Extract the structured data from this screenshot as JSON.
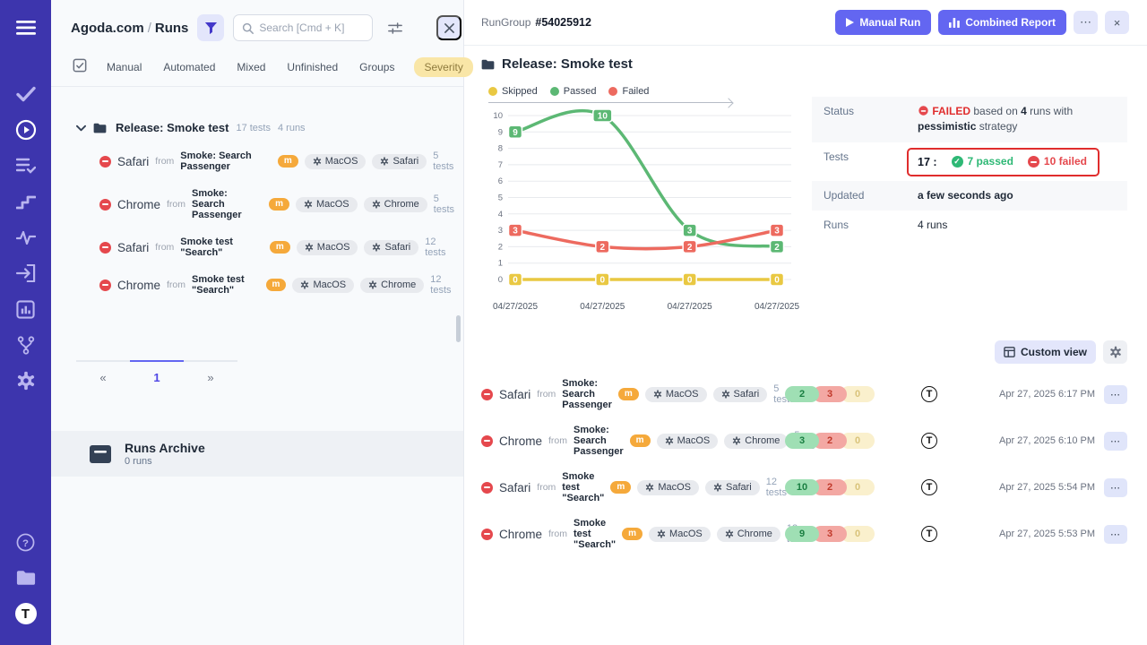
{
  "sidebar": {
    "icons": [
      "menu-icon",
      "check-icon",
      "play-circle-icon",
      "list-check-icon",
      "steps-icon",
      "pulse-icon",
      "import-icon",
      "chart-box-icon",
      "branch-icon",
      "gear-icon",
      "help-icon",
      "folder-icon",
      "logo"
    ],
    "logo_letter": "T"
  },
  "labels": {
    "from": "from"
  },
  "left_panel": {
    "breadcrumb": {
      "project": "Agoda.com",
      "separator": "/",
      "current": "Runs"
    },
    "search_placeholder": "Search [Cmd + K]",
    "tabs": [
      {
        "label": "Manual"
      },
      {
        "label": "Automated"
      },
      {
        "label": "Mixed"
      },
      {
        "label": "Unfinished"
      },
      {
        "label": "Groups"
      }
    ],
    "severity_tab": "Severity",
    "group_header": {
      "title": "Release: Smoke test",
      "tests_count": "17 tests",
      "runs_count": "4 runs"
    },
    "runs": [
      {
        "browser": "Safari",
        "suite": "Smoke: Search Passenger",
        "badge": "m",
        "os_chip": "MacOS",
        "browser_chip": "Safari",
        "tests": "5 tests"
      },
      {
        "browser": "Chrome",
        "suite": "Smoke: Search Passenger",
        "badge": "m",
        "os_chip": "MacOS",
        "browser_chip": "Chrome",
        "tests": "5 tests"
      },
      {
        "browser": "Safari",
        "suite": "Smoke test \"Search\"",
        "badge": "m",
        "os_chip": "MacOS",
        "browser_chip": "Safari",
        "tests": "12 tests"
      },
      {
        "browser": "Chrome",
        "suite": "Smoke test \"Search\"",
        "badge": "m",
        "os_chip": "MacOS",
        "browser_chip": "Chrome",
        "tests": "12 tests"
      }
    ],
    "pagination": {
      "prev": "«",
      "current": "1",
      "next": "»"
    },
    "archive": {
      "title": "Runs Archive",
      "count": "0 runs"
    }
  },
  "right_panel": {
    "header": {
      "group_label": "RunGroup",
      "group_id": "#54025912",
      "manual_run_label": "Manual Run",
      "combined_report_label": "Combined Report",
      "more_label": "⋯",
      "close_label": "×"
    },
    "title": "Release: Smoke test",
    "summary": {
      "status": {
        "label": "Status",
        "badge": "FAILED",
        "seg1": "based on",
        "runs_count": "4",
        "seg2": "runs with",
        "strategy": "pessimistic",
        "seg3": "strategy"
      },
      "tests": {
        "label": "Tests",
        "total": "17 :",
        "passed": "7 passed",
        "failed": "10 failed"
      },
      "updated": {
        "label": "Updated",
        "value": "a few seconds ago"
      },
      "runs": {
        "label": "Runs",
        "value": "4 runs"
      }
    },
    "custom_view_label": "Custom view",
    "runs": [
      {
        "browser": "Safari",
        "suite": "Smoke: Search Passenger",
        "badge": "m",
        "os_chip": "MacOS",
        "browser_chip": "Safari",
        "tests": "5 tests",
        "passed": "2",
        "failed": "3",
        "skipped": "0",
        "avatar": "T",
        "time": "Apr 27, 2025 6:17 PM",
        "more": "⋯"
      },
      {
        "browser": "Chrome",
        "suite": "Smoke: Search Passenger",
        "badge": "m",
        "os_chip": "MacOS",
        "browser_chip": "Chrome",
        "tests": "5 tests",
        "passed": "3",
        "failed": "2",
        "skipped": "0",
        "avatar": "T",
        "time": "Apr 27, 2025 6:10 PM",
        "more": "⋯"
      },
      {
        "browser": "Safari",
        "suite": "Smoke test \"Search\"",
        "badge": "m",
        "os_chip": "MacOS",
        "browser_chip": "Safari",
        "tests": "12 tests",
        "passed": "10",
        "failed": "2",
        "skipped": "0",
        "avatar": "T",
        "time": "Apr 27, 2025 5:54 PM",
        "more": "⋯"
      },
      {
        "browser": "Chrome",
        "suite": "Smoke test \"Search\"",
        "badge": "m",
        "os_chip": "MacOS",
        "browser_chip": "Chrome",
        "tests": "12 tests",
        "passed": "9",
        "failed": "3",
        "skipped": "0",
        "avatar": "T",
        "time": "Apr 27, 2025 5:53 PM",
        "more": "⋯"
      }
    ]
  },
  "chart_data": {
    "type": "line",
    "title": "",
    "xlabel": "",
    "ylabel": "",
    "x": [
      "04/27/2025",
      "04/27/2025",
      "04/27/2025",
      "04/27/2025"
    ],
    "series": [
      {
        "name": "Skipped",
        "color": "#e9c842",
        "values": [
          0,
          0,
          0,
          0
        ]
      },
      {
        "name": "Passed",
        "color": "#5cb874",
        "values": [
          9,
          10,
          3,
          2
        ]
      },
      {
        "name": "Failed",
        "color": "#ed6a5f",
        "values": [
          3,
          2,
          2,
          3
        ]
      }
    ],
    "ylim": [
      0,
      10
    ],
    "ytick_step": 1,
    "grid": true,
    "legend_position": "top",
    "point_labels": true
  },
  "colors": {
    "accent": "#6366f1",
    "sidebar": "#3d35ad",
    "failed": "#e02d2d",
    "passed": "#2eb875",
    "skipped": "#e9c842",
    "severity_bg": "#f9e6a7"
  }
}
